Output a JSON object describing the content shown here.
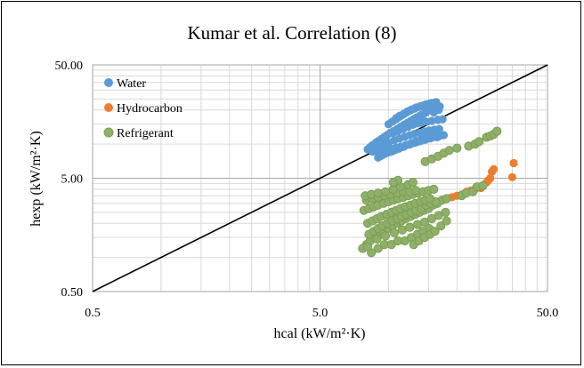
{
  "chart_data": {
    "type": "scatter",
    "title": "Kumar  et al. Correlation  (8)",
    "xlabel": "hcal (kW/m²·K)",
    "ylabel": "hexp (kW/m²·K)",
    "x_scale": "log",
    "y_scale": "log",
    "xlim": [
      0.5,
      50.0
    ],
    "ylim": [
      0.5,
      50.0
    ],
    "x_ticks": [
      "0.5",
      "5.0",
      "50.0"
    ],
    "y_ticks": [
      "0.50",
      "5.00",
      "50.00"
    ],
    "grid": true,
    "legend_position": "top-left",
    "reference_line": {
      "x": [
        0.5,
        50.0
      ],
      "y": [
        0.5,
        50.0
      ],
      "color": "#000000"
    },
    "series": [
      {
        "name": "Water",
        "color": "#5b9bd5",
        "points": [
          [
            8.1,
            9.0
          ],
          [
            8.3,
            9.4
          ],
          [
            8.5,
            9.8
          ],
          [
            8.8,
            10.3
          ],
          [
            9.0,
            10.6
          ],
          [
            9.3,
            11.1
          ],
          [
            9.6,
            11.6
          ],
          [
            9.9,
            12.1
          ],
          [
            10.2,
            12.6
          ],
          [
            10.5,
            13.0
          ],
          [
            10.9,
            13.6
          ],
          [
            11.3,
            14.2
          ],
          [
            11.7,
            14.8
          ],
          [
            12.1,
            15.4
          ],
          [
            12.5,
            16.0
          ],
          [
            12.9,
            16.6
          ],
          [
            13.3,
            17.2
          ],
          [
            13.8,
            17.8
          ],
          [
            14.2,
            18.4
          ],
          [
            14.6,
            19.0
          ],
          [
            10.0,
            15.0
          ],
          [
            10.4,
            15.8
          ],
          [
            10.8,
            16.6
          ],
          [
            11.2,
            17.4
          ],
          [
            11.6,
            18.2
          ],
          [
            12.0,
            19.0
          ],
          [
            12.5,
            19.8
          ],
          [
            13.0,
            20.5
          ],
          [
            13.6,
            21.3
          ],
          [
            14.2,
            21.9
          ],
          [
            14.8,
            22.5
          ],
          [
            15.5,
            23.0
          ],
          [
            16.2,
            23.5
          ],
          [
            11.5,
            14.0
          ],
          [
            12.0,
            15.0
          ],
          [
            12.6,
            16.0
          ],
          [
            13.2,
            17.0
          ],
          [
            13.8,
            18.0
          ],
          [
            14.5,
            19.0
          ],
          [
            15.2,
            20.0
          ],
          [
            16.0,
            20.7
          ],
          [
            16.8,
            21.5
          ],
          [
            15.8,
            19.0
          ],
          [
            16.6,
            20.0
          ],
          [
            10.5,
            12.5
          ],
          [
            11.0,
            13.0
          ],
          [
            11.6,
            13.6
          ],
          [
            12.2,
            14.2
          ],
          [
            12.8,
            14.8
          ],
          [
            13.4,
            15.2
          ],
          [
            14.0,
            15.4
          ],
          [
            14.6,
            15.8
          ],
          [
            15.5,
            16.0
          ],
          [
            16.5,
            16.4
          ],
          [
            17.3,
            16.6
          ],
          [
            8.5,
            8.6
          ],
          [
            8.9,
            8.7
          ],
          [
            9.3,
            8.8
          ],
          [
            9.8,
            8.9
          ],
          [
            10.3,
            9.1
          ],
          [
            10.8,
            9.3
          ],
          [
            11.3,
            9.5
          ],
          [
            11.9,
            9.8
          ],
          [
            12.5,
            10.0
          ],
          [
            13.1,
            10.3
          ],
          [
            13.8,
            10.6
          ],
          [
            14.5,
            10.9
          ],
          [
            15.3,
            11.2
          ],
          [
            16.0,
            11.6
          ],
          [
            16.9,
            11.9
          ],
          [
            17.5,
            12.0
          ],
          [
            9.0,
            9.5
          ],
          [
            9.5,
            9.9
          ],
          [
            10.0,
            10.3
          ],
          [
            10.6,
            10.8
          ],
          [
            11.2,
            11.2
          ],
          [
            11.8,
            11.6
          ],
          [
            12.4,
            12.0
          ],
          [
            13.0,
            12.3
          ],
          [
            13.7,
            12.6
          ],
          [
            14.4,
            12.9
          ],
          [
            15.1,
            13.2
          ],
          [
            15.9,
            13.4
          ],
          [
            16.7,
            13.6
          ],
          [
            9.0,
            7.6
          ],
          [
            9.4,
            8.0
          ],
          [
            9.8,
            8.3
          ],
          [
            10.3,
            8.6
          ],
          [
            10.8,
            9.0
          ],
          [
            11.4,
            9.4
          ],
          [
            12.0,
            9.8
          ],
          [
            12.6,
            10.2
          ],
          [
            13.2,
            10.6
          ],
          [
            13.9,
            11.0
          ],
          [
            14.6,
            11.4
          ],
          [
            15.4,
            11.8
          ],
          [
            16.2,
            12.2
          ],
          [
            9.2,
            7.8
          ],
          [
            9.6,
            8.2
          ],
          [
            10.1,
            8.5
          ],
          [
            10.6,
            8.8
          ],
          [
            11.1,
            9.1
          ],
          [
            11.7,
            9.5
          ],
          [
            12.3,
            9.9
          ],
          [
            12.9,
            10.3
          ],
          [
            13.5,
            10.5
          ],
          [
            14.2,
            10.9
          ],
          [
            14.9,
            11.2
          ],
          [
            15.7,
            11.5
          ],
          [
            16.4,
            11.5
          ],
          [
            10.8,
            17.0
          ],
          [
            11.2,
            17.8
          ],
          [
            11.7,
            18.6
          ],
          [
            12.1,
            19.4
          ],
          [
            12.6,
            20.2
          ],
          [
            13.2,
            21.0
          ],
          [
            13.8,
            21.6
          ],
          [
            14.5,
            22.3
          ],
          [
            15.2,
            22.8
          ]
        ]
      },
      {
        "name": "Hydrocarbon",
        "color": "#ed7d31",
        "points": [
          [
            10.5,
            2.3
          ],
          [
            11.0,
            2.4
          ],
          [
            11.6,
            2.5
          ],
          [
            12.3,
            2.6
          ],
          [
            13.0,
            2.7
          ],
          [
            13.7,
            2.8
          ],
          [
            14.5,
            2.9
          ],
          [
            15.3,
            3.0
          ],
          [
            16.2,
            3.1
          ],
          [
            17.1,
            3.2
          ],
          [
            18.0,
            3.3
          ],
          [
            19.0,
            3.4
          ],
          [
            20.0,
            3.5
          ],
          [
            21.0,
            3.6
          ],
          [
            22.0,
            3.8
          ],
          [
            23.0,
            3.9
          ],
          [
            24.0,
            4.0
          ],
          [
            25.5,
            4.1
          ],
          [
            27.0,
            4.6
          ],
          [
            27.5,
            4.8
          ],
          [
            28.0,
            5.0
          ],
          [
            28.5,
            5.7
          ],
          [
            29.0,
            6.0
          ],
          [
            35.5,
            6.8
          ],
          [
            35.0,
            5.1
          ]
        ]
      },
      {
        "name": "Refrigerant",
        "color": "#8faf6a",
        "points": [
          [
            8.0,
            1.3
          ],
          [
            8.3,
            1.4
          ],
          [
            8.7,
            1.5
          ],
          [
            9.1,
            1.6
          ],
          [
            9.5,
            1.7
          ],
          [
            9.9,
            1.8
          ],
          [
            10.4,
            1.9
          ],
          [
            10.9,
            2.0
          ],
          [
            11.4,
            2.1
          ],
          [
            11.9,
            2.2
          ],
          [
            12.5,
            2.3
          ],
          [
            13.1,
            2.4
          ],
          [
            13.7,
            2.5
          ],
          [
            14.3,
            2.6
          ],
          [
            15.0,
            2.7
          ],
          [
            15.7,
            2.9
          ],
          [
            16.4,
            3.0
          ],
          [
            17.2,
            3.2
          ],
          [
            18.0,
            3.3
          ],
          [
            8.2,
            1.6
          ],
          [
            8.6,
            1.7
          ],
          [
            9.0,
            1.8
          ],
          [
            9.4,
            1.9
          ],
          [
            9.9,
            2.0
          ],
          [
            10.4,
            2.1
          ],
          [
            10.9,
            2.2
          ],
          [
            11.4,
            2.3
          ],
          [
            12.0,
            2.4
          ],
          [
            12.6,
            2.5
          ],
          [
            13.2,
            2.6
          ],
          [
            13.9,
            2.7
          ],
          [
            14.6,
            2.9
          ],
          [
            15.3,
            3.0
          ],
          [
            16.1,
            3.1
          ],
          [
            8.1,
            2.0
          ],
          [
            8.5,
            2.1
          ],
          [
            8.9,
            2.2
          ],
          [
            9.3,
            2.3
          ],
          [
            9.8,
            2.4
          ],
          [
            10.3,
            2.5
          ],
          [
            10.8,
            2.6
          ],
          [
            11.3,
            2.7
          ],
          [
            11.9,
            2.8
          ],
          [
            12.5,
            2.9
          ],
          [
            13.1,
            3.0
          ],
          [
            13.8,
            3.1
          ],
          [
            14.5,
            3.2
          ],
          [
            15.2,
            3.3
          ],
          [
            7.8,
            2.6
          ],
          [
            8.2,
            2.7
          ],
          [
            8.6,
            2.8
          ],
          [
            9.0,
            2.9
          ],
          [
            9.5,
            3.0
          ],
          [
            10.0,
            3.1
          ],
          [
            10.5,
            3.2
          ],
          [
            11.0,
            3.3
          ],
          [
            11.6,
            3.4
          ],
          [
            12.2,
            3.5
          ],
          [
            12.8,
            3.6
          ],
          [
            13.5,
            3.7
          ],
          [
            14.2,
            3.8
          ],
          [
            15.0,
            3.9
          ],
          [
            15.8,
            4.0
          ],
          [
            8.0,
            3.2
          ],
          [
            8.5,
            3.3
          ],
          [
            9.0,
            3.4
          ],
          [
            9.6,
            3.5
          ],
          [
            10.2,
            3.6
          ],
          [
            10.9,
            3.7
          ],
          [
            11.6,
            3.8
          ],
          [
            12.4,
            3.8
          ],
          [
            13.2,
            3.9
          ],
          [
            7.9,
            3.5
          ],
          [
            8.4,
            3.6
          ],
          [
            9.0,
            3.7
          ],
          [
            9.7,
            3.8
          ],
          [
            10.5,
            4.0
          ],
          [
            11.3,
            4.2
          ],
          [
            12.2,
            4.4
          ],
          [
            11.0,
            4.8
          ],
          [
            10.5,
            4.6
          ],
          [
            12.8,
            4.6
          ],
          [
            8.4,
            1.1
          ],
          [
            9.0,
            1.2
          ],
          [
            9.6,
            1.3
          ],
          [
            10.3,
            1.3
          ],
          [
            11.0,
            1.4
          ],
          [
            11.8,
            1.4
          ],
          [
            12.6,
            1.5
          ],
          [
            13.4,
            1.6
          ],
          [
            14.2,
            1.7
          ],
          [
            15.1,
            1.8
          ],
          [
            7.7,
            1.2
          ],
          [
            8.1,
            1.25
          ],
          [
            8.9,
            1.45
          ],
          [
            9.7,
            1.55
          ],
          [
            10.6,
            1.65
          ],
          [
            11.5,
            1.75
          ],
          [
            12.4,
            1.85
          ],
          [
            13.4,
            1.95
          ],
          [
            14.4,
            2.05
          ],
          [
            15.5,
            2.2
          ],
          [
            16.6,
            2.35
          ],
          [
            17.8,
            2.5
          ],
          [
            12.9,
            1.3
          ],
          [
            13.6,
            1.4
          ],
          [
            14.4,
            1.5
          ],
          [
            15.2,
            1.6
          ],
          [
            16.0,
            1.7
          ],
          [
            17.0,
            1.9
          ],
          [
            18.0,
            2.1
          ],
          [
            14.5,
            7.0
          ],
          [
            15.5,
            7.4
          ],
          [
            16.5,
            7.8
          ],
          [
            17.5,
            8.3
          ],
          [
            18.5,
            8.8
          ],
          [
            20.0,
            9.2
          ],
          [
            22.5,
            9.6
          ],
          [
            24.0,
            10.0
          ],
          [
            25.0,
            10.5
          ],
          [
            27.0,
            11.5
          ],
          [
            28.0,
            11.8
          ],
          [
            29.0,
            12.2
          ],
          [
            30.0,
            13.0
          ],
          [
            21.0,
            3.5
          ],
          [
            22.0,
            3.7
          ],
          [
            23.5,
            3.8
          ],
          [
            24.5,
            4.2
          ],
          [
            26.0,
            4.3
          ]
        ]
      }
    ]
  }
}
